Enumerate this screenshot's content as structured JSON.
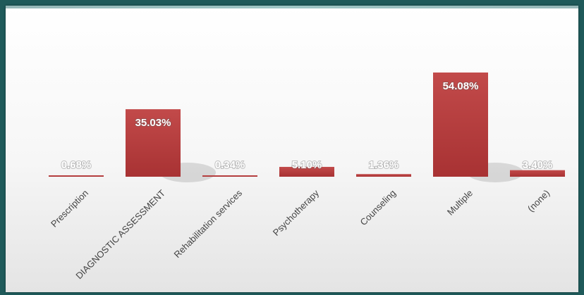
{
  "chart_data": {
    "type": "bar",
    "categories": [
      "Prescription",
      "DIAGNOSTIC ASSESSMENT",
      "Rehabilitation services",
      "Psychotherapy",
      "Counseling",
      "Multiple",
      "(none)"
    ],
    "values": [
      0.68,
      35.03,
      0.34,
      5.1,
      1.36,
      54.08,
      3.4
    ],
    "value_labels": [
      "0.68%",
      "35.03%",
      "0.34%",
      "5.10%",
      "1.36%",
      "54.08%",
      "3.40%"
    ],
    "ylim": [
      0,
      60
    ],
    "grid": false,
    "legend": "none",
    "bar_color": "#b3393a"
  }
}
